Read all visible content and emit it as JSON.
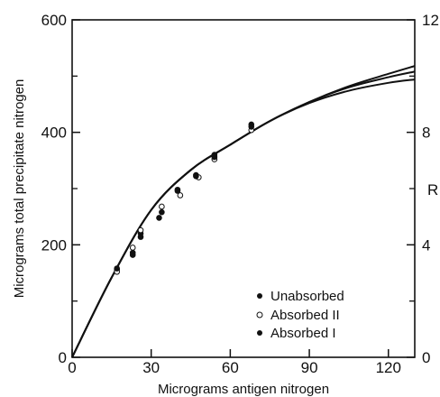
{
  "chart_data": {
    "type": "scatter",
    "xlabel": "Micrograms antigen nitrogen",
    "ylabel": "Micrograms total precipitate nitrogen",
    "y2label": "R",
    "xlim": [
      0,
      130
    ],
    "ylim": [
      0,
      600
    ],
    "y2lim": [
      0,
      12
    ],
    "grid": false,
    "legend_placement": "bottom-right",
    "xticks": [
      "0",
      "30",
      "60",
      "90",
      "120"
    ],
    "yticks": [
      "0",
      "200",
      "400",
      "600"
    ],
    "y2ticks": [
      "0",
      "4",
      "8",
      "12"
    ],
    "series": [
      {
        "name": "Unabsorbed",
        "marker": "filled",
        "points": [
          [
            17,
            156
          ],
          [
            23,
            186
          ],
          [
            26,
            220
          ],
          [
            33,
            248
          ],
          [
            40,
            298
          ],
          [
            47,
            324
          ],
          [
            54,
            360
          ],
          [
            68,
            414
          ]
        ]
      },
      {
        "name": "Absorbed II",
        "marker": "open",
        "points": [
          [
            17,
            152
          ],
          [
            23,
            195
          ],
          [
            26,
            226
          ],
          [
            34,
            268
          ],
          [
            41,
            288
          ],
          [
            48,
            320
          ],
          [
            54,
            352
          ],
          [
            68,
            404
          ]
        ]
      },
      {
        "name": "Absorbed I",
        "marker": "filled",
        "points": [
          [
            17,
            158
          ],
          [
            23,
            182
          ],
          [
            26,
            214
          ],
          [
            34,
            258
          ],
          [
            40,
            296
          ],
          [
            47,
            322
          ],
          [
            54,
            356
          ],
          [
            68,
            410
          ]
        ]
      }
    ],
    "curves": [
      {
        "x": [
          0,
          15,
          30,
          45,
          60,
          75,
          90,
          105,
          120,
          130
        ],
        "y": [
          0,
          142,
          262,
          333,
          378,
          420,
          454,
          482,
          504,
          518
        ]
      },
      {
        "x": [
          0,
          15,
          30,
          45,
          60,
          75,
          90,
          105,
          120,
          130
        ],
        "y": [
          0,
          142,
          262,
          333,
          378,
          420,
          454,
          480,
          498,
          508
        ]
      },
      {
        "x": [
          0,
          15,
          30,
          45,
          60,
          75,
          90,
          105,
          120,
          130
        ],
        "y": [
          0,
          142,
          262,
          333,
          378,
          420,
          452,
          474,
          488,
          494
        ]
      }
    ]
  }
}
